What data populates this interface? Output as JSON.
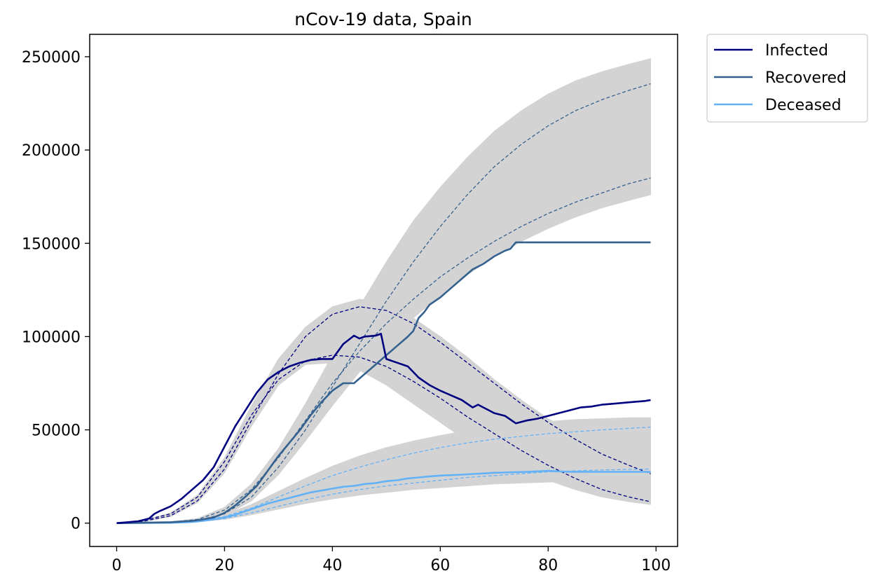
{
  "chart_data": {
    "type": "line",
    "title": "nCov-19 data, Spain",
    "xlabel": "",
    "ylabel": "",
    "xlim": [
      -5,
      104
    ],
    "ylim": [
      -12500,
      262000
    ],
    "xticks": [
      0,
      20,
      40,
      60,
      80,
      100
    ],
    "yticks": [
      0,
      50000,
      100000,
      150000,
      200000,
      250000
    ],
    "grid": false,
    "legend_position": "outside-top-right",
    "colors": {
      "infected": "#000080",
      "recovered": "#35618f",
      "deceased": "#63b2f7",
      "ensemble": "#d3d3d3"
    },
    "series": [
      {
        "name": "Infected",
        "style": "solid",
        "x": [
          0,
          2,
          4,
          6,
          7,
          8,
          10,
          12,
          14,
          16,
          18,
          20,
          22,
          24,
          26,
          28,
          30,
          32,
          34,
          36,
          38,
          40,
          42,
          44,
          45,
          46,
          48,
          49,
          50,
          52,
          54,
          56,
          57,
          58,
          60,
          62,
          64,
          66,
          67,
          68,
          70,
          72,
          74,
          76,
          78,
          80,
          82,
          84,
          86,
          88,
          90,
          92,
          94,
          96,
          98,
          99
        ],
        "y": [
          0,
          500,
          1000,
          2500,
          5000,
          6500,
          9000,
          13000,
          18000,
          23000,
          30000,
          41000,
          52000,
          61000,
          70000,
          77000,
          81000,
          84000,
          86000,
          87500,
          88000,
          88000,
          96000,
          100500,
          99000,
          100000,
          100500,
          101500,
          88000,
          86000,
          84000,
          78000,
          76000,
          74000,
          71000,
          68500,
          66000,
          62000,
          63500,
          62000,
          59000,
          57500,
          53500,
          55000,
          56000,
          57500,
          59000,
          60500,
          62000,
          62500,
          63500,
          64000,
          64500,
          65000,
          65500,
          66000
        ]
      },
      {
        "name": "Recovered",
        "style": "solid",
        "x": [
          0,
          10,
          14,
          16,
          18,
          20,
          22,
          24,
          26,
          28,
          30,
          32,
          34,
          36,
          38,
          40,
          42,
          44,
          46,
          48,
          50,
          52,
          54,
          55,
          56,
          57,
          58,
          60,
          62,
          64,
          66,
          68,
          70,
          71,
          72,
          73,
          74,
          76,
          80,
          90,
          99
        ],
        "y": [
          0,
          500,
          1200,
          2000,
          3000,
          5500,
          9500,
          14500,
          20000,
          28000,
          36000,
          43000,
          50000,
          58000,
          65000,
          71000,
          75000,
          75000,
          80000,
          85000,
          90000,
          95000,
          100000,
          103000,
          110000,
          113000,
          117000,
          121000,
          126000,
          131000,
          136000,
          139000,
          143000,
          144500,
          146000,
          147000,
          150500,
          150500,
          150500,
          150500,
          150500
        ]
      },
      {
        "name": "Deceased",
        "style": "solid",
        "x": [
          0,
          10,
          14,
          16,
          18,
          20,
          22,
          24,
          26,
          28,
          30,
          32,
          34,
          36,
          38,
          40,
          42,
          44,
          46,
          48,
          50,
          52,
          54,
          56,
          58,
          60,
          64,
          70,
          76,
          80,
          84,
          90,
          99
        ],
        "y": [
          0,
          200,
          600,
          1200,
          2000,
          3000,
          4500,
          6500,
          8500,
          10500,
          12000,
          13500,
          15000,
          16500,
          17500,
          18500,
          19500,
          20000,
          21000,
          21500,
          22500,
          23000,
          24000,
          24500,
          25000,
          25500,
          26000,
          27000,
          27500,
          28000,
          27500,
          27500,
          27500
        ]
      }
    ],
    "model_curves": [
      {
        "series": "Infected",
        "style": "dashed",
        "x": [
          0,
          5,
          10,
          15,
          20,
          25,
          30,
          35,
          40,
          45,
          50,
          55,
          60,
          65,
          70,
          75,
          80,
          85,
          90,
          95,
          99
        ],
        "y": [
          0,
          1500,
          5000,
          14000,
          33000,
          58000,
          77000,
          87000,
          90000,
          89000,
          84000,
          76000,
          67000,
          57000,
          48000,
          39000,
          31000,
          24000,
          18000,
          14000,
          11500
        ]
      },
      {
        "series": "Infected",
        "style": "dashed",
        "x": [
          0,
          5,
          10,
          15,
          20,
          25,
          30,
          35,
          40,
          45,
          50,
          55,
          60,
          65,
          70,
          75,
          80,
          85,
          90,
          95,
          99
        ],
        "y": [
          0,
          1000,
          4000,
          12000,
          29000,
          55000,
          80000,
          100000,
          112000,
          116000,
          114000,
          107000,
          97000,
          86000,
          75000,
          64000,
          54000,
          45000,
          37000,
          31000,
          26500
        ]
      },
      {
        "series": "Recovered",
        "style": "dashed",
        "x": [
          0,
          10,
          15,
          20,
          25,
          30,
          35,
          40,
          45,
          50,
          55,
          60,
          65,
          70,
          75,
          80,
          85,
          90,
          95,
          99
        ],
        "y": [
          0,
          500,
          2000,
          7000,
          18000,
          35000,
          55000,
          75000,
          92000,
          107000,
          120000,
          132000,
          142000,
          151000,
          159000,
          166000,
          172000,
          177000,
          182000,
          185000
        ]
      },
      {
        "series": "Recovered",
        "style": "dashed",
        "x": [
          0,
          10,
          15,
          20,
          25,
          30,
          35,
          40,
          45,
          50,
          55,
          60,
          65,
          70,
          75,
          80,
          85,
          90,
          95,
          99
        ],
        "y": [
          0,
          500,
          1500,
          5000,
          14000,
          30000,
          50000,
          73000,
          96000,
          119000,
          140000,
          159000,
          176000,
          191000,
          203000,
          213000,
          221000,
          227000,
          232000,
          235500
        ]
      },
      {
        "series": "Deceased",
        "style": "dashed",
        "x": [
          0,
          10,
          15,
          20,
          25,
          30,
          35,
          40,
          45,
          50,
          55,
          60,
          65,
          70,
          75,
          80,
          85,
          90,
          95,
          99
        ],
        "y": [
          0,
          300,
          1000,
          2500,
          5500,
          9000,
          12500,
          15500,
          18000,
          20000,
          21500,
          23000,
          24500,
          25500,
          26500,
          27500,
          28000,
          28500,
          28800,
          29000
        ]
      },
      {
        "series": "Deceased",
        "style": "dashed",
        "x": [
          0,
          10,
          15,
          20,
          25,
          30,
          35,
          40,
          45,
          50,
          55,
          60,
          65,
          70,
          75,
          80,
          85,
          90,
          95,
          99
        ],
        "y": [
          0,
          300,
          1200,
          3500,
          8000,
          14000,
          20000,
          25500,
          30000,
          34000,
          37500,
          40500,
          43000,
          45000,
          46500,
          48000,
          49000,
          50000,
          50800,
          51500
        ]
      }
    ],
    "ensemble_bands": [
      {
        "series": "Infected",
        "x": [
          0,
          5,
          10,
          15,
          20,
          25,
          30,
          35,
          40,
          45,
          50,
          55,
          60,
          65,
          70,
          75,
          80,
          85,
          90,
          95,
          99
        ],
        "lower": [
          0,
          800,
          3500,
          11000,
          27000,
          52000,
          74000,
          85000,
          86000,
          82000,
          74000,
          64000,
          54000,
          44000,
          36000,
          29000,
          23000,
          18000,
          14000,
          11500,
          10000
        ],
        "upper": [
          0,
          1500,
          5500,
          15000,
          35000,
          63000,
          88000,
          105000,
          116000,
          120000,
          118000,
          110000,
          100000,
          89000,
          77000,
          66000,
          56000,
          47000,
          39000,
          32000,
          28000
        ]
      },
      {
        "series": "Recovered",
        "x": [
          0,
          10,
          15,
          20,
          25,
          30,
          35,
          40,
          45,
          50,
          55,
          60,
          65,
          70,
          75,
          80,
          85,
          90,
          95,
          99
        ],
        "lower": [
          0,
          300,
          1200,
          4000,
          12000,
          26000,
          44000,
          63000,
          81000,
          97000,
          110000,
          122000,
          133000,
          143000,
          151000,
          158000,
          164000,
          169000,
          173000,
          176000
        ],
        "upper": [
          0,
          800,
          2500,
          8500,
          21000,
          40000,
          64000,
          90000,
          116000,
          140000,
          162000,
          180000,
          196000,
          210000,
          221000,
          230000,
          237000,
          242000,
          246000,
          249000
        ]
      },
      {
        "series": "Deceased",
        "x": [
          0,
          10,
          15,
          20,
          25,
          30,
          35,
          40,
          45,
          50,
          55,
          60,
          65,
          70,
          75,
          80,
          85,
          90,
          95,
          99
        ],
        "lower": [
          0,
          200,
          800,
          2000,
          4500,
          7500,
          10500,
          13000,
          15000,
          16500,
          18000,
          19000,
          20000,
          21000,
          21500,
          22000,
          22500,
          23000,
          23200,
          23500
        ],
        "upper": [
          0,
          400,
          1500,
          4500,
          10000,
          17000,
          24000,
          30500,
          36000,
          40500,
          44000,
          47000,
          49500,
          51500,
          53000,
          54500,
          55500,
          56000,
          56500,
          56500
        ]
      }
    ]
  }
}
